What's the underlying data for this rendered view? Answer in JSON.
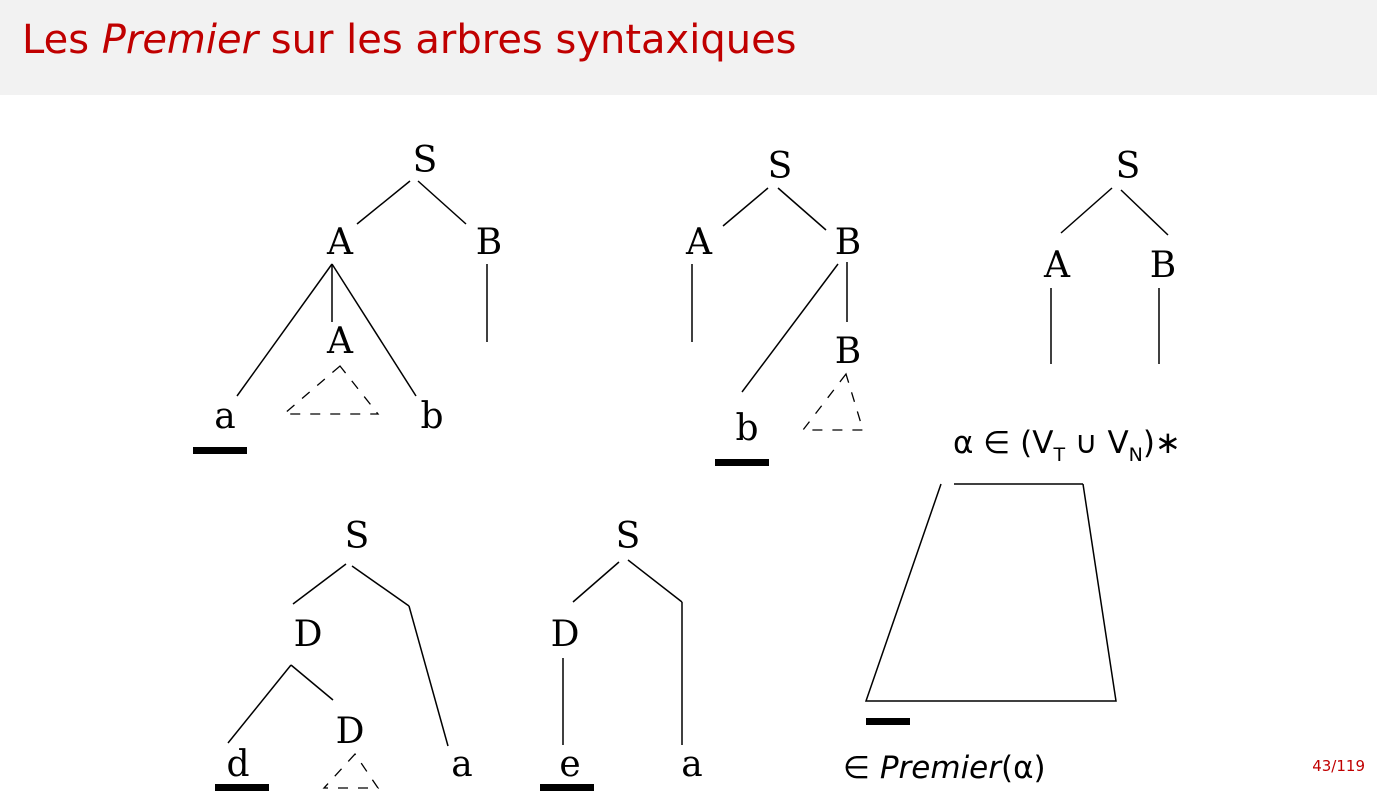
{
  "slide": {
    "title_prefix": "Les ",
    "title_emph": "Premier",
    "title_suffix": " sur les arbres syntaxiques",
    "page": "43/119"
  },
  "trees": {
    "t1": {
      "root": "S",
      "left": "A",
      "right": "B",
      "inner": "A",
      "leaf_left": "a",
      "leaf_right": "b"
    },
    "t2": {
      "root": "S",
      "left": "A",
      "right": "B",
      "inner": "B",
      "leaf": "b"
    },
    "t3": {
      "root": "S",
      "left": "A",
      "right": "B"
    },
    "t4": {
      "root": "S",
      "left": "D",
      "inner": "D",
      "leaf_left": "d",
      "leaf_right": "a"
    },
    "t5": {
      "root": "S",
      "left": "D",
      "leaf_left": "e",
      "leaf_right": "a"
    }
  },
  "general": {
    "alpha": "α ∈ (V",
    "sub_t": "T",
    "union": " ∪ V",
    "sub_n": "N",
    "close": ")∗",
    "premier_prefix": "∈ ",
    "premier_name": "Premier",
    "premier_arg": "(α)"
  },
  "colors": {
    "title": "#c00000",
    "header_bg": "#f2f2f2"
  }
}
